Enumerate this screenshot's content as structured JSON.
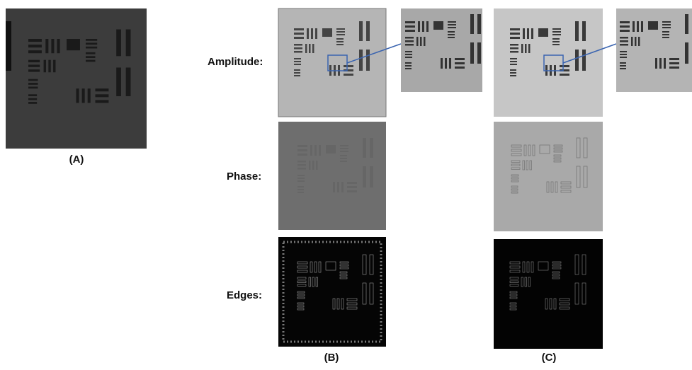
{
  "panel_labels": [
    "(A)",
    "(B)",
    "(C)"
  ],
  "row_labels": [
    "Amplitude:",
    "Phase:",
    "Edges:"
  ]
}
